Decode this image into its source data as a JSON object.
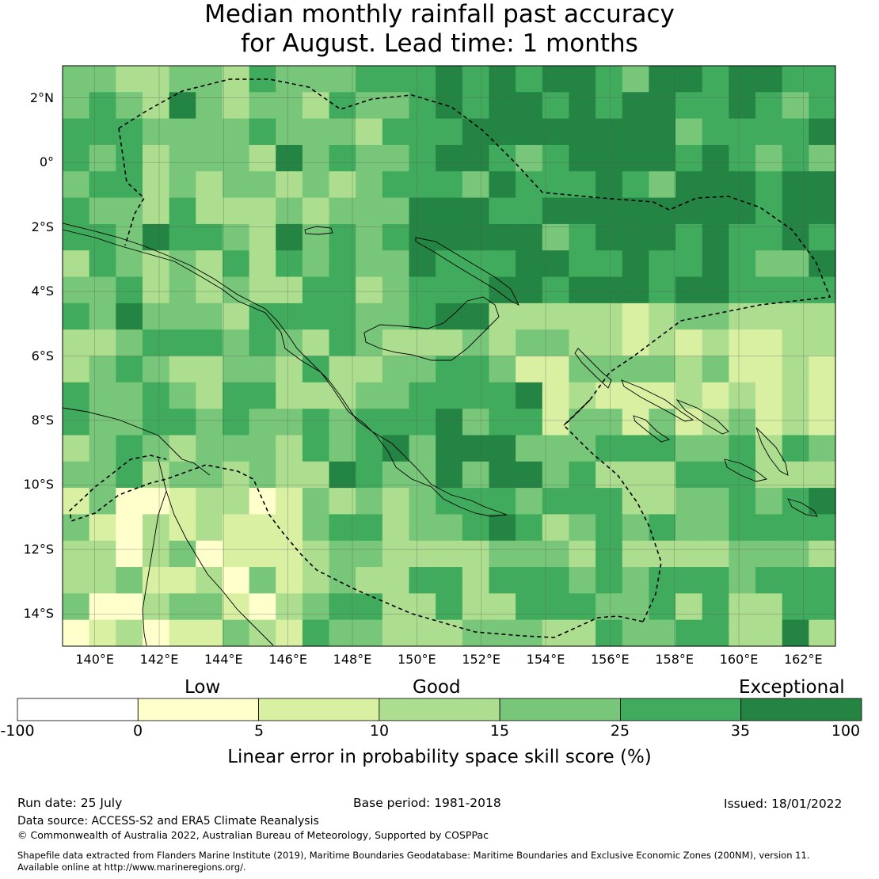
{
  "title_line1": "Median monthly rainfall past accuracy",
  "title_line2": "for August. Lead time: 1 months",
  "map": {
    "lon_range": [
      139,
      163
    ],
    "lat_range": [
      -15,
      3
    ],
    "lat_ticks": [
      "2°N",
      "0°",
      "2°S",
      "4°S",
      "6°S",
      "8°S",
      "10°S",
      "12°S",
      "14°S"
    ],
    "lon_ticks": [
      "140°E",
      "142°E",
      "144°E",
      "146°E",
      "148°E",
      "150°E",
      "152°E",
      "154°E",
      "156°E",
      "158°E",
      "160°E",
      "162°E"
    ]
  },
  "colorbar": {
    "tiers": [
      "Low",
      "Good",
      "Exceptional"
    ],
    "ticks": [
      "-100",
      "0",
      "5",
      "10",
      "15",
      "25",
      "35",
      "100"
    ],
    "colors": [
      "#ffffff",
      "#ffffcc",
      "#d9f0a3",
      "#addd8e",
      "#78c679",
      "#41ab5d",
      "#238443"
    ],
    "label": "Linear error in probability space skill score (%)"
  },
  "footer": {
    "run_date": "Run date: 25 July",
    "base_period": "Base period: 1981-2018",
    "issued": "Issued: 18/01/2022",
    "data_source": "Data source: ACCESS-S2 and ERA5 Climate Reanalysis",
    "copyright": "© Commonwealth of Australia 2022, Australian Bureau of Meteorology, Supported by COSPPac",
    "shapefile_1": "Shapefile data extracted from Flanders Marine Institute (2019), Maritime Boundaries Geodatabase: Maritime Boundaries and Exclusive Economic Zones (200NM), version 11.",
    "shapefile_2": "Available online at http://www.marineregions.org/."
  }
}
